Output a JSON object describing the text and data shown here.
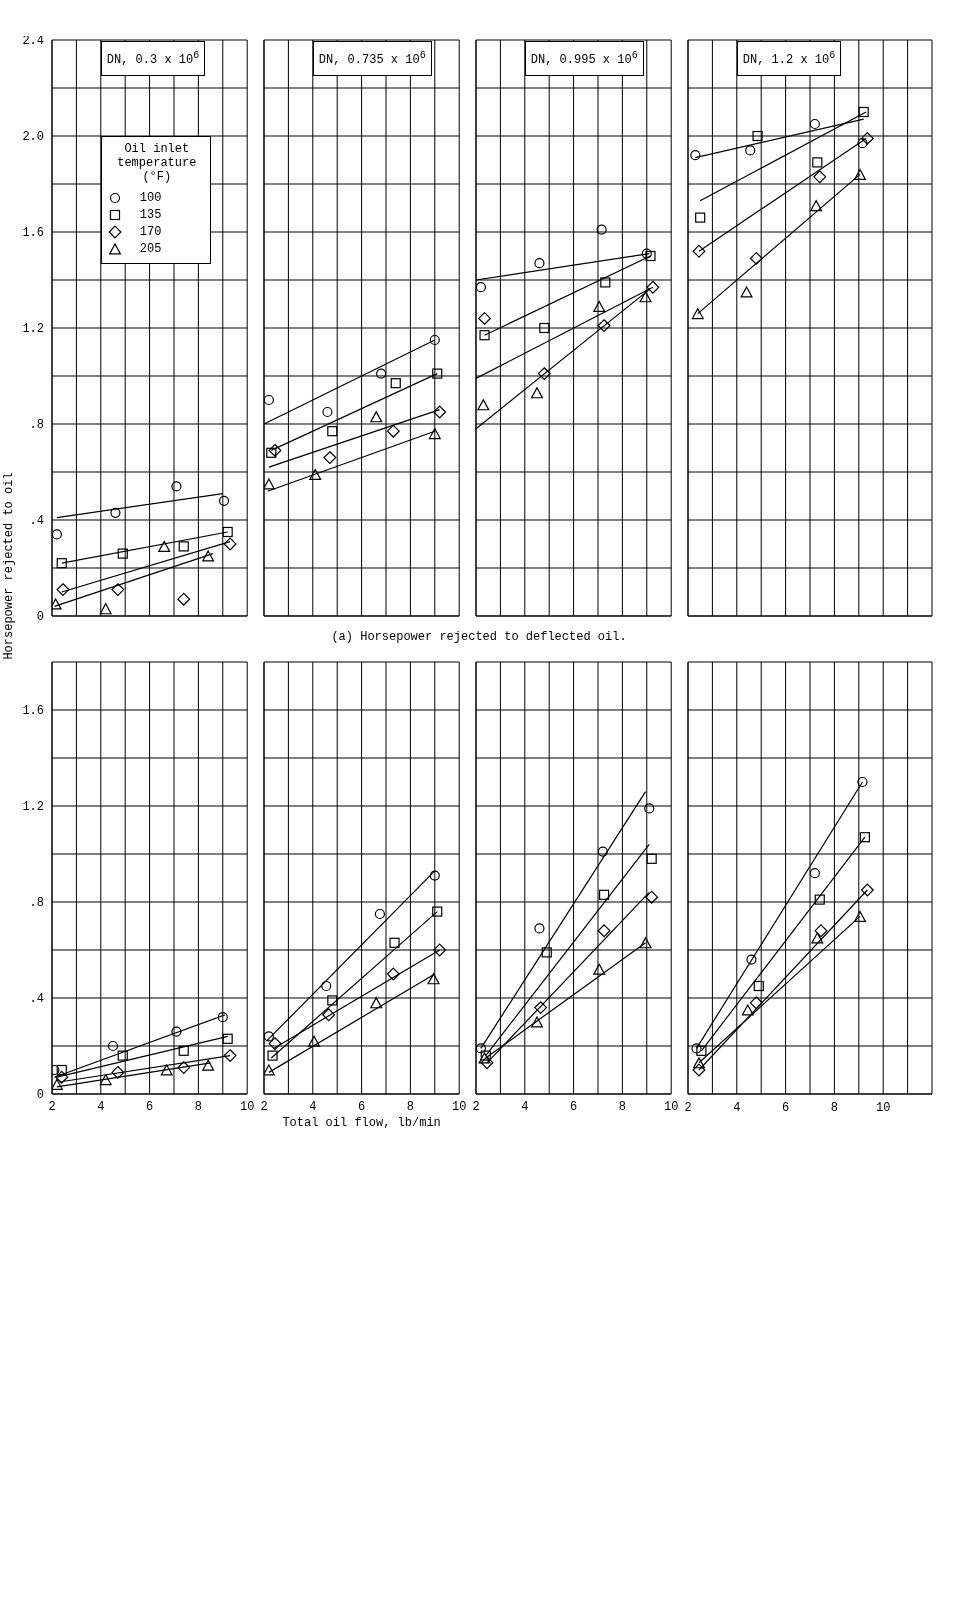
{
  "chart_data": [
    {
      "type": "scatter",
      "title": "DN, 0.3 x 10$^{6}$",
      "xlim": [
        2,
        10
      ],
      "xticks": [
        {
          "value": 2,
          "label": null
        },
        {
          "value": 3,
          "label": null
        },
        {
          "value": 4,
          "label": null
        },
        {
          "value": 5,
          "label": null
        },
        {
          "value": 6,
          "label": null
        },
        {
          "value": 7,
          "label": null
        },
        {
          "value": 8,
          "label": null
        },
        {
          "value": 9,
          "label": null
        },
        {
          "value": 10,
          "label": null
        }
      ],
      "ylim": [
        0,
        2.4
      ],
      "yticks": [
        0,
        {
          "value": 0.2,
          "label": null
        },
        {
          "value": 0.4,
          "label": ".4"
        },
        {
          "value": 0.6,
          "label": null
        },
        {
          "value": 0.8,
          "label": ".8"
        },
        {
          "value": 1.0,
          "label": null
        },
        1.2,
        {
          "value": 1.4,
          "label": null
        },
        1.6,
        {
          "value": 1.8,
          "label": null
        },
        {
          "value": 2.0,
          "label": "2.0"
        },
        {
          "value": 2.2,
          "label": null
        },
        2.4
      ],
      "grid": true,
      "tick_labels": "y",
      "legend": "top left",
      "legend_title": "Oil inlet temperature (°F)",
      "series": [
        {
          "name": "100",
          "color": "#000000",
          "marker": "circle",
          "x": [
            2.2,
            4.6,
            7.1,
            9.05
          ],
          "values": [
            0.34,
            0.43,
            0.54,
            0.48
          ]
        },
        {
          "name": "135",
          "color": "#000000",
          "marker": "square",
          "x": [
            2.4,
            4.9,
            7.4,
            9.2
          ],
          "values": [
            0.22,
            0.26,
            0.29,
            0.35
          ]
        },
        {
          "name": "170",
          "color": "#000000",
          "marker": "diamond",
          "x": [
            2.45,
            4.7,
            7.4,
            9.3
          ],
          "values": [
            0.11,
            0.11,
            0.07,
            0.3
          ]
        },
        {
          "name": "205",
          "color": "#000000",
          "marker": "triangle",
          "x": [
            2.15,
            4.2,
            6.6,
            8.4
          ],
          "values": [
            0.05,
            0.03,
            0.29,
            0.25
          ]
        },
        {
          "type": "line",
          "color": "#000000",
          "x": [
            2.2,
            9.0
          ],
          "values": [
            0.41,
            0.51
          ]
        },
        {
          "type": "line",
          "color": "#000000",
          "x": [
            2.4,
            9.2
          ],
          "values": [
            0.22,
            0.35
          ]
        },
        {
          "type": "line",
          "color": "#000000",
          "x": [
            2.4,
            9.3
          ],
          "values": [
            0.1,
            0.31
          ]
        },
        {
          "type": "line",
          "color": "#000000",
          "x": [
            2.1,
            8.6
          ],
          "values": [
            0.04,
            0.26
          ]
        }
      ]
    },
    {
      "type": "scatter",
      "title": "DN, 0.735 x 10$^{6}$",
      "annotations": [
        "(a) Horsepower rejected to deflected oil."
      ],
      "xlim": [
        2,
        10
      ],
      "xticks": [
        {
          "value": 2,
          "label": null
        },
        {
          "value": 3,
          "label": null
        },
        {
          "value": 4,
          "label": null
        },
        {
          "value": 5,
          "label": null
        },
        {
          "value": 6,
          "label": null
        },
        {
          "value": 7,
          "label": null
        },
        {
          "value": 8,
          "label": null
        },
        {
          "value": 9,
          "label": null
        },
        {
          "value": 10,
          "label": null
        }
      ],
      "ylim": [
        0,
        2.4
      ],
      "yticks": [
        {
          "value": 0,
          "label": null
        },
        {
          "value": 0.2,
          "label": null
        },
        {
          "value": 0.4,
          "label": null
        },
        {
          "value": 0.6,
          "label": null
        },
        {
          "value": 0.8,
          "label": null
        },
        {
          "value": 1.0,
          "label": null
        },
        {
          "value": 1.2,
          "label": null
        },
        {
          "value": 1.4,
          "label": null
        },
        {
          "value": 1.6,
          "label": null
        },
        {
          "value": 1.8,
          "label": null
        },
        {
          "value": 2.0,
          "label": null
        },
        {
          "value": 2.2,
          "label": null
        },
        {
          "value": 2.4,
          "label": null
        }
      ],
      "grid": true,
      "tick_labels": false,
      "series": [
        {
          "color": "#000000",
          "marker": "circle",
          "x": [
            2.2,
            4.6,
            6.8,
            9.0
          ],
          "values": [
            0.9,
            0.85,
            1.01,
            1.15
          ]
        },
        {
          "color": "#000000",
          "marker": "square",
          "x": [
            2.3,
            4.8,
            7.4,
            9.1
          ],
          "values": [
            0.68,
            0.77,
            0.97,
            1.01
          ]
        },
        {
          "color": "#000000",
          "marker": "diamond",
          "x": [
            2.45,
            4.7,
            7.3,
            9.2
          ],
          "values": [
            0.69,
            0.66,
            0.77,
            0.85
          ]
        },
        {
          "color": "#000000",
          "marker": "triangle",
          "x": [
            2.2,
            4.1,
            6.6,
            9.0
          ],
          "values": [
            0.55,
            0.59,
            0.83,
            0.76
          ]
        },
        {
          "type": "line",
          "color": "#000000",
          "x": [
            2.0,
            9.0
          ],
          "values": [
            0.8,
            1.15
          ]
        },
        {
          "type": "line",
          "color": "#000000",
          "x": [
            2.3,
            9.1
          ],
          "values": [
            0.69,
            1.01
          ]
        },
        {
          "type": "line",
          "color": "#000000",
          "x": [
            2.2,
            9.2
          ],
          "values": [
            0.62,
            0.86
          ]
        },
        {
          "type": "line",
          "color": "#000000",
          "x": [
            2.15,
            9.0
          ],
          "values": [
            0.52,
            0.77
          ]
        }
      ]
    },
    {
      "type": "scatter",
      "title": "DN, 0.995 x 10$^{6}$",
      "xlim": [
        2,
        10
      ],
      "xticks": [
        {
          "value": 2,
          "label": null
        },
        {
          "value": 3,
          "label": null
        },
        {
          "value": 4,
          "label": null
        },
        {
          "value": 5,
          "label": null
        },
        {
          "value": 6,
          "label": null
        },
        {
          "value": 7,
          "label": null
        },
        {
          "value": 8,
          "label": null
        },
        {
          "value": 9,
          "label": null
        },
        {
          "value": 10,
          "label": null
        }
      ],
      "ylim": [
        0,
        2.4
      ],
      "yticks": [
        {
          "value": 0,
          "label": null
        },
        {
          "value": 0.2,
          "label": null
        },
        {
          "value": 0.4,
          "label": null
        },
        {
          "value": 0.6,
          "label": null
        },
        {
          "value": 0.8,
          "label": null
        },
        {
          "value": 1.0,
          "label": null
        },
        {
          "value": 1.2,
          "label": null
        },
        {
          "value": 1.4,
          "label": null
        },
        {
          "value": 1.6,
          "label": null
        },
        {
          "value": 1.8,
          "label": null
        },
        {
          "value": 2.0,
          "label": null
        },
        {
          "value": 2.2,
          "label": null
        },
        {
          "value": 2.4,
          "label": null
        }
      ],
      "grid": true,
      "tick_labels": false,
      "series": [
        {
          "color": "#000000",
          "marker": "circle",
          "x": [
            2.2,
            4.6,
            7.15,
            9.0
          ],
          "values": [
            1.37,
            1.47,
            1.61,
            1.51
          ]
        },
        {
          "color": "#000000",
          "marker": "square",
          "x": [
            2.35,
            4.8,
            7.3,
            9.15
          ],
          "values": [
            1.17,
            1.2,
            1.39,
            1.5
          ]
        },
        {
          "color": "#000000",
          "marker": "diamond",
          "x": [
            2.35,
            4.8,
            7.25,
            9.25
          ],
          "values": [
            1.24,
            1.01,
            1.21,
            1.37
          ]
        },
        {
          "color": "#000000",
          "marker": "triangle",
          "x": [
            2.3,
            4.5,
            7.05,
            8.95
          ],
          "values": [
            0.88,
            0.93,
            1.29,
            1.33
          ]
        },
        {
          "type": "line",
          "color": "#000000",
          "x": [
            2.0,
            9.1
          ],
          "values": [
            1.4,
            1.51
          ]
        },
        {
          "type": "line",
          "color": "#000000",
          "x": [
            2.35,
            9.15
          ],
          "values": [
            1.17,
            1.5
          ]
        },
        {
          "type": "line",
          "color": "#000000",
          "x": [
            2.0,
            9.25
          ],
          "values": [
            0.99,
            1.37
          ]
        },
        {
          "type": "line",
          "color": "#000000",
          "x": [
            2.0,
            9.1
          ],
          "values": [
            0.78,
            1.36
          ]
        }
      ]
    },
    {
      "type": "scatter",
      "title": "DN, 1.2 x 10$^{6}$",
      "xlim": [
        2,
        12
      ],
      "xticks": [
        {
          "value": 2,
          "label": null
        },
        {
          "value": 3,
          "label": null
        },
        {
          "value": 4,
          "label": null
        },
        {
          "value": 5,
          "label": null
        },
        {
          "value": 6,
          "label": null
        },
        {
          "value": 7,
          "label": null
        },
        {
          "value": 8,
          "label": null
        },
        {
          "value": 9,
          "label": null
        },
        {
          "value": 10,
          "label": null
        },
        {
          "value": 11,
          "label": null
        },
        {
          "value": 12,
          "label": null
        }
      ],
      "ylim": [
        0,
        2.4
      ],
      "yticks": [
        {
          "value": 0,
          "label": null
        },
        {
          "value": 0.2,
          "label": null
        },
        {
          "value": 0.4,
          "label": null
        },
        {
          "value": 0.6,
          "label": null
        },
        {
          "value": 0.8,
          "label": null
        },
        {
          "value": 1.0,
          "label": null
        },
        {
          "value": 1.2,
          "label": null
        },
        {
          "value": 1.4,
          "label": null
        },
        {
          "value": 1.6,
          "label": null
        },
        {
          "value": 1.8,
          "label": null
        },
        {
          "value": 2.0,
          "label": null
        },
        {
          "value": 2.2,
          "label": null
        },
        {
          "value": 2.4,
          "label": null
        }
      ],
      "grid": true,
      "tick_labels": false,
      "series": [
        {
          "color": "#000000",
          "marker": "circle",
          "x": [
            2.3,
            4.55,
            7.2,
            9.15
          ],
          "values": [
            1.92,
            1.94,
            2.05,
            1.97
          ]
        },
        {
          "color": "#000000",
          "marker": "square",
          "x": [
            2.5,
            4.85,
            7.3,
            9.2
          ],
          "values": [
            1.66,
            2.0,
            1.89,
            2.1
          ]
        },
        {
          "color": "#000000",
          "marker": "diamond",
          "x": [
            2.45,
            4.8,
            7.4,
            9.35
          ],
          "values": [
            1.52,
            1.49,
            1.83,
            1.99
          ]
        },
        {
          "color": "#000000",
          "marker": "triangle",
          "x": [
            2.4,
            4.4,
            7.25,
            9.05
          ],
          "values": [
            1.26,
            1.35,
            1.71,
            1.84
          ]
        },
        {
          "type": "line",
          "color": "#000000",
          "x": [
            2.3,
            9.2
          ],
          "values": [
            1.91,
            2.07
          ]
        },
        {
          "type": "line",
          "color": "#000000",
          "x": [
            2.5,
            9.3
          ],
          "values": [
            1.73,
            2.1
          ]
        },
        {
          "type": "line",
          "color": "#000000",
          "x": [
            2.45,
            9.3
          ],
          "values": [
            1.52,
            1.99
          ]
        },
        {
          "type": "line",
          "color": "#000000",
          "x": [
            2.4,
            9.05
          ],
          "values": [
            1.26,
            1.84
          ]
        }
      ]
    },
    {
      "type": "scatter",
      "ylabel": "Horsepower rejected to oil",
      "xlim": [
        2,
        10
      ],
      "xticks": [
        2,
        {
          "value": 3,
          "label": null
        },
        4,
        {
          "value": 5,
          "label": null
        },
        6,
        {
          "value": 7,
          "label": null
        },
        8,
        {
          "value": 9,
          "label": null
        },
        10
      ],
      "ylim": [
        0,
        1.8
      ],
      "yticks": [
        0,
        {
          "value": 0.2,
          "label": null
        },
        {
          "value": 0.4,
          "label": ".4"
        },
        {
          "value": 0.6,
          "label": null
        },
        {
          "value": 0.8,
          "label": ".8"
        },
        {
          "value": 1.0,
          "label": null
        },
        1.2,
        {
          "value": 1.4,
          "label": null
        },
        1.6,
        {
          "value": 1.8,
          "label": null
        }
      ],
      "grid": true,
      "series": [
        {
          "color": "#000000",
          "marker": "circle",
          "x": [
            2.1,
            4.5,
            7.1,
            9.0
          ],
          "values": [
            0.1,
            0.2,
            0.26,
            0.32
          ]
        },
        {
          "color": "#000000",
          "marker": "square",
          "x": [
            2.4,
            4.9,
            7.4,
            9.2
          ],
          "values": [
            0.1,
            0.16,
            0.18,
            0.23
          ]
        },
        {
          "color": "#000000",
          "marker": "diamond",
          "x": [
            2.4,
            4.7,
            7.4,
            9.3
          ],
          "values": [
            0.07,
            0.09,
            0.11,
            0.16
          ]
        },
        {
          "color": "#000000",
          "marker": "triangle",
          "x": [
            2.2,
            4.2,
            6.7,
            8.4
          ],
          "values": [
            0.04,
            0.06,
            0.1,
            0.12
          ]
        },
        {
          "type": "line",
          "color": "#000000",
          "x": [
            2.1,
            9.1
          ],
          "values": [
            0.07,
            0.33
          ]
        },
        {
          "type": "line",
          "color": "#000000",
          "x": [
            2.2,
            9.2
          ],
          "values": [
            0.07,
            0.24
          ]
        },
        {
          "type": "line",
          "color": "#000000",
          "x": [
            2.3,
            9.3
          ],
          "values": [
            0.05,
            0.16
          ]
        },
        {
          "type": "line",
          "color": "#000000",
          "x": [
            2.2,
            8.5
          ],
          "values": [
            0.03,
            0.13
          ]
        }
      ]
    },
    {
      "type": "scatter",
      "xlabel": "Total oil flow, lb/min",
      "xlim": [
        2,
        10
      ],
      "xticks": [
        2,
        {
          "value": 3,
          "label": null
        },
        4,
        {
          "value": 5,
          "label": null
        },
        6,
        {
          "value": 7,
          "label": null
        },
        8,
        {
          "value": 9,
          "label": null
        },
        10
      ],
      "ylim": [
        0,
        1.8
      ],
      "yticks": [
        {
          "value": 0,
          "label": null
        },
        {
          "value": 0.2,
          "label": null
        },
        {
          "value": 0.4,
          "label": null
        },
        {
          "value": 0.6,
          "label": null
        },
        {
          "value": 0.8,
          "label": null
        },
        {
          "value": 1.0,
          "label": null
        },
        {
          "value": 1.2,
          "label": null
        },
        {
          "value": 1.4,
          "label": null
        },
        {
          "value": 1.6,
          "label": null
        },
        {
          "value": 1.8,
          "label": null
        }
      ],
      "grid": true,
      "tick_labels": "x",
      "series": [
        {
          "color": "#000000",
          "marker": "circle",
          "x": [
            2.2,
            4.55,
            6.75,
            9.0
          ],
          "values": [
            0.24,
            0.45,
            0.75,
            0.91
          ]
        },
        {
          "color": "#000000",
          "marker": "square",
          "x": [
            2.35,
            4.8,
            7.35,
            9.1
          ],
          "values": [
            0.16,
            0.39,
            0.63,
            0.76
          ]
        },
        {
          "color": "#000000",
          "marker": "diamond",
          "x": [
            2.45,
            4.65,
            7.3,
            9.2
          ],
          "values": [
            0.21,
            0.33,
            0.5,
            0.6
          ]
        },
        {
          "color": "#000000",
          "marker": "triangle",
          "x": [
            2.2,
            4.05,
            6.6,
            8.95
          ],
          "values": [
            0.1,
            0.22,
            0.38,
            0.48
          ]
        },
        {
          "type": "line",
          "color": "#000000",
          "x": [
            2.1,
            9.0
          ],
          "values": [
            0.22,
            0.93
          ]
        },
        {
          "type": "line",
          "color": "#000000",
          "x": [
            2.3,
            9.1
          ],
          "values": [
            0.15,
            0.76
          ]
        },
        {
          "type": "line",
          "color": "#000000",
          "x": [
            2.4,
            9.2
          ],
          "values": [
            0.19,
            0.6
          ]
        },
        {
          "type": "line",
          "color": "#000000",
          "x": [
            2.2,
            9.0
          ],
          "values": [
            0.09,
            0.5
          ]
        }
      ]
    },
    {
      "type": "scatter",
      "xlim": [
        2,
        10
      ],
      "xticks": [
        2,
        {
          "value": 3,
          "label": null
        },
        4,
        {
          "value": 5,
          "label": null
        },
        6,
        {
          "value": 7,
          "label": null
        },
        8,
        {
          "value": 9,
          "label": null
        },
        10
      ],
      "ylim": [
        0,
        1.8
      ],
      "yticks": [
        {
          "value": 0,
          "label": null
        },
        {
          "value": 0.2,
          "label": null
        },
        {
          "value": 0.4,
          "label": null
        },
        {
          "value": 0.6,
          "label": null
        },
        {
          "value": 0.8,
          "label": null
        },
        {
          "value": 1.0,
          "label": null
        },
        {
          "value": 1.2,
          "label": null
        },
        {
          "value": 1.4,
          "label": null
        },
        {
          "value": 1.6,
          "label": null
        },
        {
          "value": 1.8,
          "label": null
        }
      ],
      "grid": true,
      "tick_labels": "x",
      "series": [
        {
          "color": "#000000",
          "marker": "circle",
          "x": [
            2.2,
            4.6,
            7.2,
            9.1
          ],
          "values": [
            0.19,
            0.69,
            1.01,
            1.19
          ]
        },
        {
          "color": "#000000",
          "marker": "square",
          "x": [
            2.4,
            4.9,
            7.25,
            9.2
          ],
          "values": [
            0.16,
            0.59,
            0.83,
            0.98
          ]
        },
        {
          "color": "#000000",
          "marker": "diamond",
          "x": [
            2.45,
            4.65,
            7.25,
            9.2
          ],
          "values": [
            0.13,
            0.36,
            0.68,
            0.82
          ]
        },
        {
          "color": "#000000",
          "marker": "triangle",
          "x": [
            2.35,
            4.5,
            7.05,
            8.95
          ],
          "values": [
            0.15,
            0.3,
            0.52,
            0.63
          ]
        },
        {
          "type": "line",
          "color": "#000000",
          "x": [
            2.2,
            8.95
          ],
          "values": [
            0.19,
            1.26
          ]
        },
        {
          "type": "line",
          "color": "#000000",
          "x": [
            2.4,
            9.1
          ],
          "values": [
            0.16,
            1.04
          ]
        },
        {
          "type": "line",
          "color": "#000000",
          "x": [
            2.45,
            9.1
          ],
          "values": [
            0.13,
            0.84
          ]
        },
        {
          "type": "line",
          "color": "#000000",
          "x": [
            2.4,
            8.95
          ],
          "values": [
            0.15,
            0.63
          ]
        }
      ]
    },
    {
      "type": "scatter",
      "xlim": [
        2,
        12
      ],
      "xticks": [
        2,
        {
          "value": 3,
          "label": null
        },
        4,
        {
          "value": 5,
          "label": null
        },
        6,
        {
          "value": 7,
          "label": null
        },
        8,
        {
          "value": 9,
          "label": null
        },
        10,
        {
          "value": 11,
          "label": null
        },
        {
          "value": 12,
          "label": null
        }
      ],
      "ylim": [
        0,
        1.8
      ],
      "yticks": [
        {
          "value": 0,
          "label": null
        },
        {
          "value": 0.2,
          "label": null
        },
        {
          "value": 0.4,
          "label": null
        },
        {
          "value": 0.6,
          "label": null
        },
        {
          "value": 0.8,
          "label": null
        },
        {
          "value": 1.0,
          "label": null
        },
        {
          "value": 1.2,
          "label": null
        },
        {
          "value": 1.4,
          "label": null
        },
        {
          "value": 1.6,
          "label": null
        },
        {
          "value": 1.8,
          "label": null
        }
      ],
      "grid": true,
      "tick_labels": "x",
      "series": [
        {
          "color": "#000000",
          "marker": "circle",
          "x": [
            2.35,
            4.6,
            7.2,
            9.15
          ],
          "values": [
            0.19,
            0.56,
            0.92,
            1.3
          ]
        },
        {
          "color": "#000000",
          "marker": "square",
          "x": [
            2.55,
            4.9,
            7.4,
            9.25
          ],
          "values": [
            0.18,
            0.45,
            0.81,
            1.07
          ]
        },
        {
          "color": "#000000",
          "marker": "diamond",
          "x": [
            2.45,
            4.8,
            7.45,
            9.35
          ],
          "values": [
            0.1,
            0.38,
            0.68,
            0.85
          ]
        },
        {
          "color": "#000000",
          "marker": "triangle",
          "x": [
            2.45,
            4.45,
            7.3,
            9.05
          ],
          "values": [
            0.13,
            0.35,
            0.65,
            0.74
          ]
        },
        {
          "type": "line",
          "color": "#000000",
          "x": [
            2.35,
            9.15
          ],
          "values": [
            0.19,
            1.3
          ]
        },
        {
          "type": "line",
          "color": "#000000",
          "x": [
            2.55,
            9.25
          ],
          "values": [
            0.18,
            1.07
          ]
        },
        {
          "type": "line",
          "color": "#000000",
          "x": [
            2.45,
            9.35
          ],
          "values": [
            0.1,
            0.85
          ]
        },
        {
          "type": "line",
          "color": "#000000",
          "x": [
            2.45,
            9.05
          ],
          "values": [
            0.13,
            0.74
          ]
        }
      ]
    }
  ]
}
